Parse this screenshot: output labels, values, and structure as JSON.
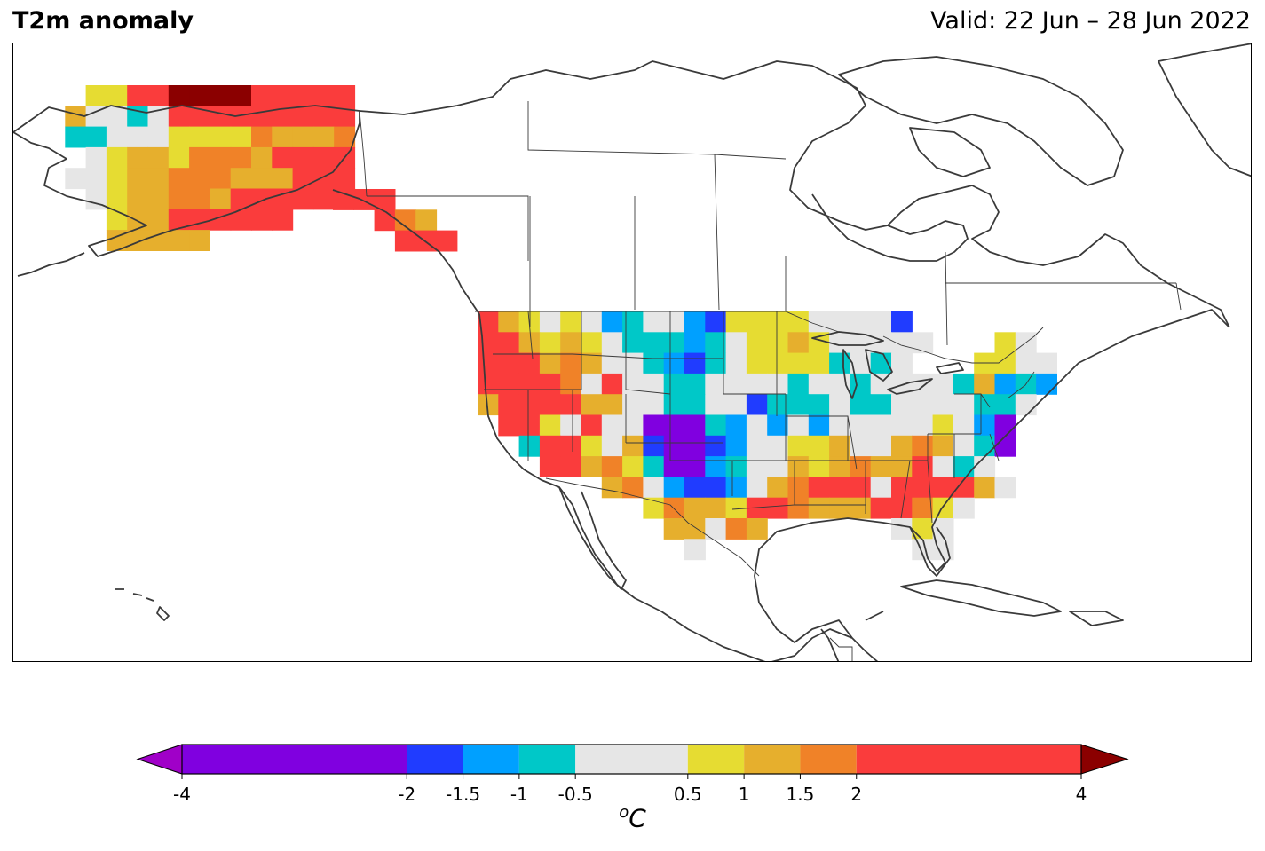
{
  "header": {
    "title": "T2m anomaly",
    "valid": "Valid: 22 Jun – 28 Jun 2022"
  },
  "colorbar": {
    "unit_sup": "o",
    "unit_main": "C",
    "ticks": [
      "-4",
      "-2",
      "-1.5",
      "-1",
      "-0.5",
      "0.5",
      "1",
      "1.5",
      "2",
      "4"
    ],
    "tick_values": [
      -4,
      -2,
      -1.5,
      -1,
      -0.5,
      0.5,
      1,
      1.5,
      2,
      4
    ],
    "bins": [
      {
        "from": -4,
        "to": -2,
        "color": "#8000e0"
      },
      {
        "from": -2,
        "to": -1.5,
        "color": "#203cff"
      },
      {
        "from": -1.5,
        "to": -1,
        "color": "#00a0ff"
      },
      {
        "from": -1,
        "to": -0.5,
        "color": "#00c8c8"
      },
      {
        "from": -0.5,
        "to": 0.5,
        "color": "#e6e6e6"
      },
      {
        "from": 0.5,
        "to": 1,
        "color": "#e6dc32"
      },
      {
        "from": 1,
        "to": 1.5,
        "color": "#e6af2d"
      },
      {
        "from": 1.5,
        "to": 2,
        "color": "#f08228"
      },
      {
        "from": 2,
        "to": 4,
        "color": "#fa3c3c"
      }
    ],
    "under_color": "#a000c8",
    "over_color": "#8b0000"
  },
  "palette": {
    "P": "#8000e0",
    "B": "#203cff",
    "L": "#00a0ff",
    "C": "#00c8c8",
    "G": "#e6e6e6",
    "Y": "#e6dc32",
    "O": "#e6af2d",
    "R": "#f08228",
    "D": "#fa3c3c",
    "M": "#8b0000"
  }
}
